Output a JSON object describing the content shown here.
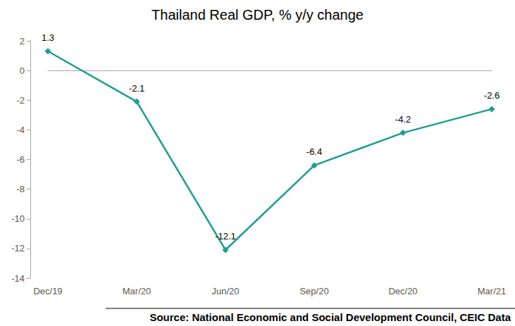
{
  "chart_data": {
    "type": "line",
    "title": "Thailand Real GDP, % y/y change",
    "source": "Source: National Economic and Social Development Council, CEIC Data",
    "categories": [
      "Dec/19",
      "Mar/20",
      "Jun/20",
      "Sep/20",
      "Dec/20",
      "Mar/21"
    ],
    "values": [
      1.3,
      -2.1,
      -12.1,
      -6.4,
      -4.2,
      -2.6
    ],
    "color": "#1a9e95",
    "marker": "diamond",
    "data_labels": true,
    "grid": false,
    "ylim": [
      -14,
      2
    ],
    "yticks": [
      -14,
      -12,
      -10,
      -8,
      -6,
      -4,
      -2,
      0,
      2
    ]
  }
}
